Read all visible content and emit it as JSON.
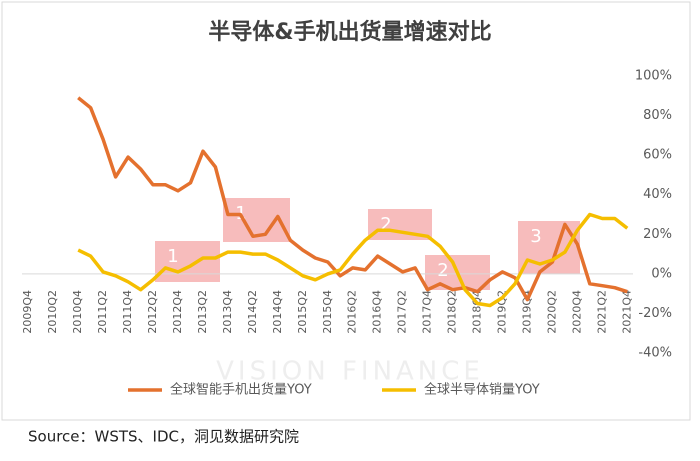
{
  "chart_data": {
    "type": "line",
    "title": "半导体&手机出货量增速对比",
    "watermark": "VISION FINANCE",
    "source": "Source：WSTS、IDC，洞见数据研究院",
    "annotations": [
      "1",
      "1",
      "2",
      "2",
      "3"
    ],
    "categories": [
      "2009Q4",
      null,
      "2010Q2",
      null,
      "2010Q4",
      null,
      "2011Q2",
      null,
      "2011Q4",
      null,
      "2012Q2",
      null,
      "2012Q4",
      null,
      "2013Q2",
      null,
      "2013Q4",
      null,
      "2014Q2",
      null,
      "2014Q4",
      null,
      "2015Q2",
      null,
      "2015Q4",
      null,
      "2016Q2",
      null,
      "2016Q4",
      null,
      "2017Q2",
      null,
      "2017Q4",
      null,
      "2018Q2",
      null,
      "2018Q4",
      null,
      "2019Q2",
      null,
      "2019Q4",
      null,
      "2020Q2",
      null,
      "2020Q4",
      null,
      "2021Q2",
      null,
      "2021Q4"
    ],
    "series": [
      {
        "name": "全球智能手机出货量YOY",
        "color": "#e4712e",
        "values": [
          null,
          null,
          null,
          null,
          89,
          84,
          68,
          49,
          59,
          53,
          45,
          45,
          42,
          46,
          62,
          54,
          30,
          30,
          19,
          20,
          29,
          17,
          12,
          8,
          6,
          -1,
          3,
          2,
          9,
          5,
          1,
          3,
          -8,
          -5,
          -8,
          -7,
          -9,
          -3,
          1,
          -2,
          -13,
          1,
          6,
          25,
          15,
          -5,
          -6,
          -7,
          -9
        ]
      },
      {
        "name": "全球半导体销量YOY",
        "color": "#f5be00",
        "values": [
          null,
          null,
          null,
          null,
          12,
          9,
          1,
          -1,
          -4,
          -8,
          -3,
          3,
          1,
          4,
          8,
          8,
          11,
          11,
          10,
          10,
          7,
          3,
          -1,
          -3,
          0,
          2,
          10,
          17,
          22,
          22,
          21,
          20,
          19,
          14,
          6,
          -8,
          -15,
          -16,
          -12,
          -5,
          7,
          5,
          7,
          11,
          22,
          30,
          28,
          28,
          23
        ]
      }
    ],
    "ylim": [
      -40,
      100
    ],
    "yticks": [
      {
        "value": 100,
        "label": "100%"
      },
      {
        "value": 80,
        "label": "80%"
      },
      {
        "value": 60,
        "label": "60%"
      },
      {
        "value": 40,
        "label": "40%"
      },
      {
        "value": 20,
        "label": "20%"
      },
      {
        "value": 0,
        "label": "0%"
      },
      {
        "value": -20,
        "label": "-20%"
      },
      {
        "value": -40,
        "label": "-40%"
      }
    ],
    "grid": false
  }
}
